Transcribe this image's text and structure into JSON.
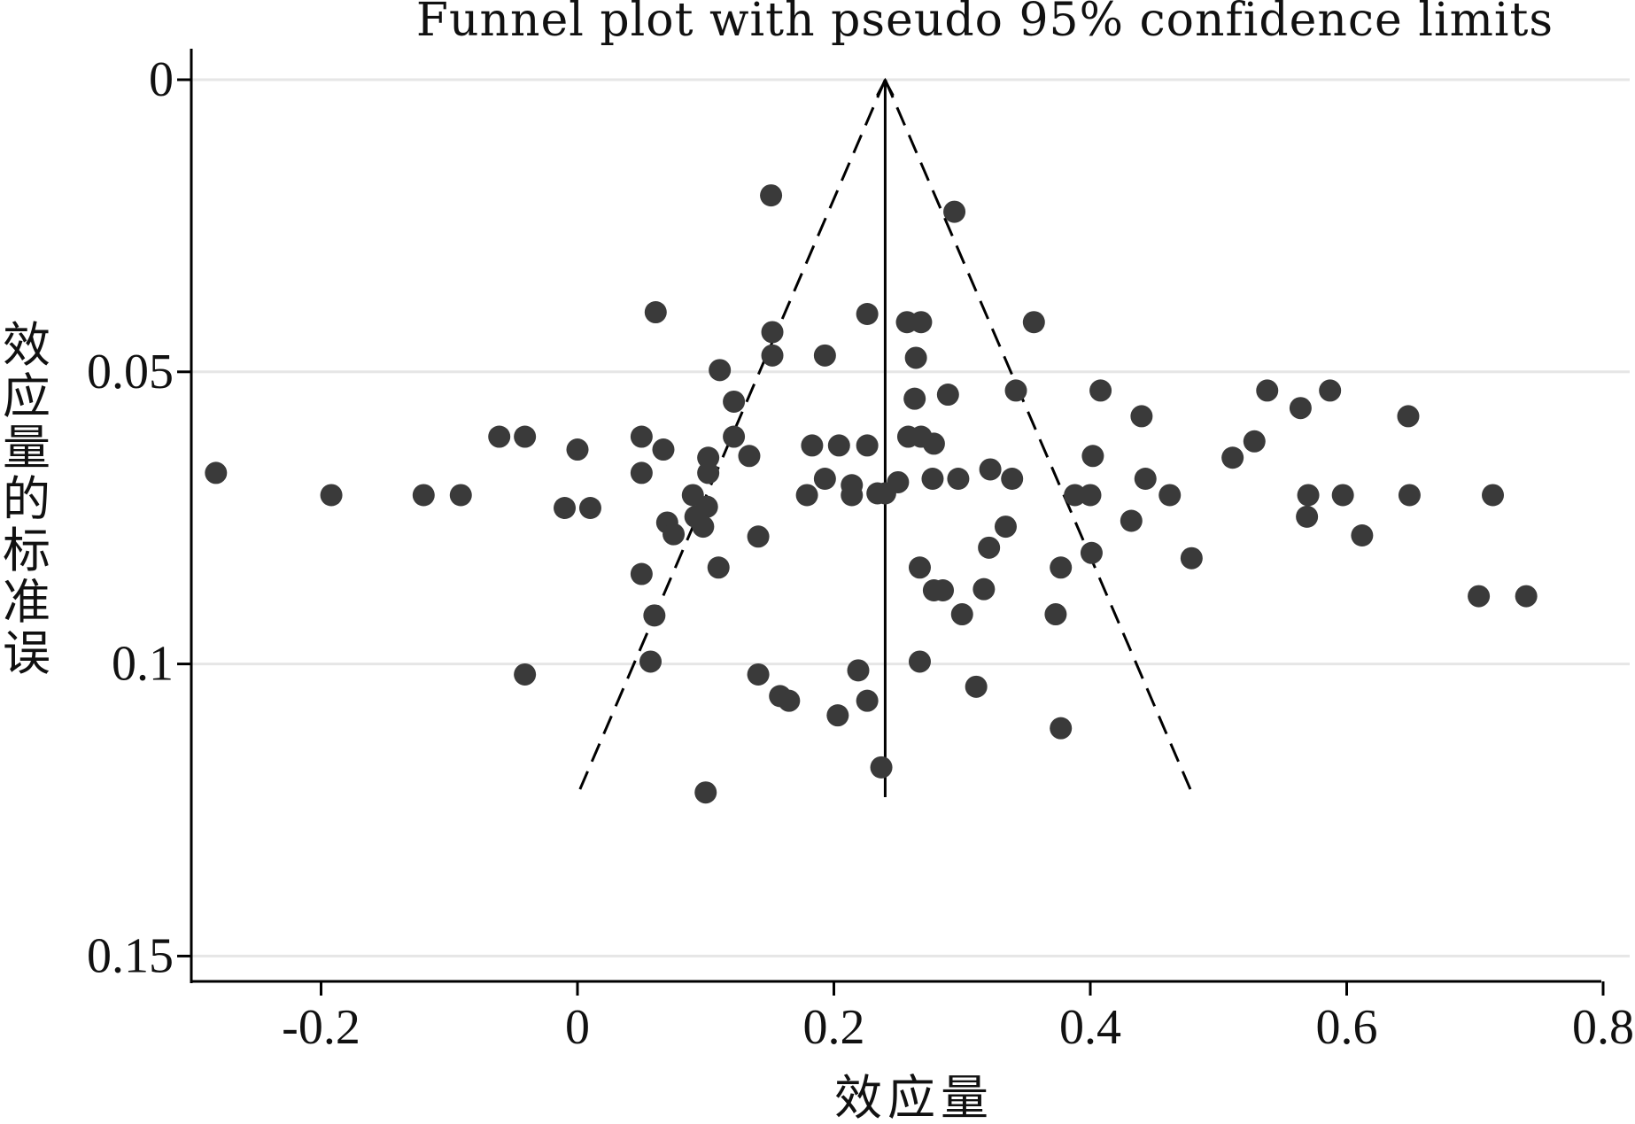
{
  "chart_data": {
    "type": "scatter",
    "title": "Funnel plot with pseudo 95% confidence limits",
    "xlabel": "效应量",
    "ylabel": "效应量的标准误",
    "xlim": [
      -0.3,
      0.8
    ],
    "ylim": [
      0,
      0.155
    ],
    "y_reversed": true,
    "grid": true,
    "x_ticks": [
      -0.2,
      0,
      0.2,
      0.4,
      0.6,
      0.8
    ],
    "x_tick_labels": [
      "-0.2",
      "0",
      "0.2",
      "0.4",
      "0.6",
      "0.8"
    ],
    "y_ticks": [
      0,
      0.05,
      0.1,
      0.15
    ],
    "y_tick_labels": [
      "0",
      "0.05",
      "0.1",
      "0.15"
    ],
    "pooled_effect": 0.24,
    "ci_se_max": 0.1225,
    "ci_z": 1.96,
    "points": [
      {
        "x": 0.151,
        "y": 0.0198
      },
      {
        "x": 0.294,
        "y": 0.0226
      },
      {
        "x": 0.061,
        "y": 0.0398
      },
      {
        "x": 0.226,
        "y": 0.0401
      },
      {
        "x": 0.257,
        "y": 0.0415
      },
      {
        "x": 0.268,
        "y": 0.0415
      },
      {
        "x": 0.356,
        "y": 0.0415
      },
      {
        "x": 0.152,
        "y": 0.0432
      },
      {
        "x": 0.152,
        "y": 0.0472
      },
      {
        "x": 0.193,
        "y": 0.0472
      },
      {
        "x": 0.264,
        "y": 0.0476
      },
      {
        "x": 0.111,
        "y": 0.0497
      },
      {
        "x": 0.342,
        "y": 0.0532
      },
      {
        "x": 0.408,
        "y": 0.0532
      },
      {
        "x": 0.538,
        "y": 0.0532
      },
      {
        "x": 0.587,
        "y": 0.0532
      },
      {
        "x": 0.263,
        "y": 0.0546
      },
      {
        "x": 0.289,
        "y": 0.0539
      },
      {
        "x": 0.122,
        "y": 0.0551
      },
      {
        "x": 0.564,
        "y": 0.0562
      },
      {
        "x": 0.44,
        "y": 0.0576
      },
      {
        "x": 0.648,
        "y": 0.0576
      },
      {
        "x": -0.061,
        "y": 0.0611
      },
      {
        "x": -0.041,
        "y": 0.0611
      },
      {
        "x": 0.05,
        "y": 0.0611
      },
      {
        "x": 0.122,
        "y": 0.0611
      },
      {
        "x": 0.258,
        "y": 0.0611
      },
      {
        "x": 0.268,
        "y": 0.0611
      },
      {
        "x": 0.278,
        "y": 0.0623
      },
      {
        "x": 0.183,
        "y": 0.0626
      },
      {
        "x": 0.204,
        "y": 0.0626
      },
      {
        "x": 0.226,
        "y": 0.0626
      },
      {
        "x": 0.528,
        "y": 0.0619
      },
      {
        "x": 0.0,
        "y": 0.0633
      },
      {
        "x": 0.067,
        "y": 0.0633
      },
      {
        "x": 0.102,
        "y": 0.0647
      },
      {
        "x": 0.134,
        "y": 0.0644
      },
      {
        "x": 0.402,
        "y": 0.0644
      },
      {
        "x": 0.511,
        "y": 0.0647
      },
      {
        "x": 0.322,
        "y": 0.0667
      },
      {
        "x": -0.282,
        "y": 0.0673
      },
      {
        "x": 0.05,
        "y": 0.0673
      },
      {
        "x": 0.102,
        "y": 0.0673
      },
      {
        "x": 0.193,
        "y": 0.0683
      },
      {
        "x": 0.277,
        "y": 0.0683
      },
      {
        "x": 0.297,
        "y": 0.0683
      },
      {
        "x": 0.339,
        "y": 0.0683
      },
      {
        "x": 0.443,
        "y": 0.0683
      },
      {
        "x": 0.214,
        "y": 0.0694
      },
      {
        "x": 0.25,
        "y": 0.0689
      },
      {
        "x": -0.192,
        "y": 0.0711
      },
      {
        "x": -0.12,
        "y": 0.0711
      },
      {
        "x": -0.091,
        "y": 0.0711
      },
      {
        "x": 0.09,
        "y": 0.0711
      },
      {
        "x": 0.179,
        "y": 0.0711
      },
      {
        "x": 0.214,
        "y": 0.0711
      },
      {
        "x": 0.234,
        "y": 0.0708
      },
      {
        "x": 0.24,
        "y": 0.0708
      },
      {
        "x": 0.388,
        "y": 0.0711
      },
      {
        "x": 0.4,
        "y": 0.0711
      },
      {
        "x": 0.462,
        "y": 0.0711
      },
      {
        "x": 0.57,
        "y": 0.0711
      },
      {
        "x": 0.597,
        "y": 0.0711
      },
      {
        "x": 0.649,
        "y": 0.0711
      },
      {
        "x": 0.714,
        "y": 0.0711
      },
      {
        "x": -0.01,
        "y": 0.0733
      },
      {
        "x": 0.01,
        "y": 0.0733
      },
      {
        "x": 0.101,
        "y": 0.0731
      },
      {
        "x": 0.092,
        "y": 0.0748
      },
      {
        "x": 0.07,
        "y": 0.0758
      },
      {
        "x": 0.432,
        "y": 0.0755
      },
      {
        "x": 0.569,
        "y": 0.0748
      },
      {
        "x": 0.334,
        "y": 0.0765
      },
      {
        "x": 0.098,
        "y": 0.0765
      },
      {
        "x": 0.075,
        "y": 0.0778
      },
      {
        "x": 0.141,
        "y": 0.0782
      },
      {
        "x": 0.612,
        "y": 0.078
      },
      {
        "x": 0.321,
        "y": 0.0801
      },
      {
        "x": 0.401,
        "y": 0.081
      },
      {
        "x": 0.479,
        "y": 0.0819
      },
      {
        "x": 0.11,
        "y": 0.0835
      },
      {
        "x": 0.267,
        "y": 0.0835
      },
      {
        "x": 0.377,
        "y": 0.0835
      },
      {
        "x": 0.05,
        "y": 0.0846
      },
      {
        "x": 0.278,
        "y": 0.0874
      },
      {
        "x": 0.285,
        "y": 0.0874
      },
      {
        "x": 0.317,
        "y": 0.0872
      },
      {
        "x": 0.703,
        "y": 0.0884
      },
      {
        "x": 0.74,
        "y": 0.0884
      },
      {
        "x": 0.06,
        "y": 0.0917
      },
      {
        "x": 0.3,
        "y": 0.0915
      },
      {
        "x": 0.373,
        "y": 0.0915
      },
      {
        "x": 0.057,
        "y": 0.0996
      },
      {
        "x": 0.267,
        "y": 0.0996
      },
      {
        "x": -0.041,
        "y": 0.1018
      },
      {
        "x": 0.141,
        "y": 0.1018
      },
      {
        "x": 0.219,
        "y": 0.1011
      },
      {
        "x": 0.311,
        "y": 0.1039
      },
      {
        "x": 0.158,
        "y": 0.1055
      },
      {
        "x": 0.165,
        "y": 0.1063
      },
      {
        "x": 0.226,
        "y": 0.1063
      },
      {
        "x": 0.203,
        "y": 0.1088
      },
      {
        "x": 0.377,
        "y": 0.111
      },
      {
        "x": 0.237,
        "y": 0.1177
      },
      {
        "x": 0.1,
        "y": 0.122
      }
    ]
  }
}
